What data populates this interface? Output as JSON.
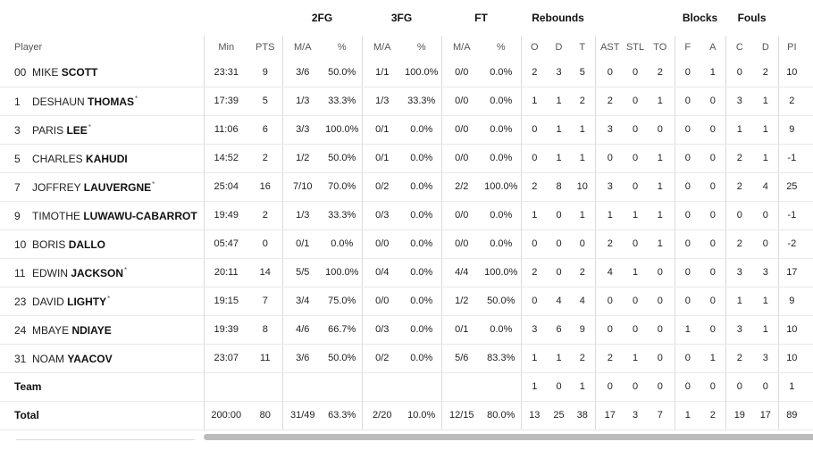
{
  "groups": {
    "twofg": "2FG",
    "threefg": "3FG",
    "ft": "FT",
    "rebounds": "Rebounds",
    "blocks": "Blocks",
    "fouls": "Fouls"
  },
  "columns": {
    "player": "Player",
    "min": "Min",
    "pts": "PTS",
    "ma": "M/A",
    "pct": "%",
    "o": "O",
    "d": "D",
    "t": "T",
    "ast": "AST",
    "stl": "STL",
    "to": "TO",
    "f": "F",
    "a": "A",
    "c": "C",
    "fd": "D",
    "pir": "PI"
  },
  "players": [
    {
      "num": "00",
      "first": "MIKE",
      "last": "SCOTT",
      "star": "",
      "min": "23:31",
      "pts": "9",
      "fg2": "3/6",
      "fg2p": "50.0%",
      "fg3": "1/1",
      "fg3p": "100.0%",
      "ft": "0/0",
      "ftp": "0.0%",
      "o": "2",
      "d": "3",
      "t": "5",
      "ast": "0",
      "stl": "0",
      "to": "2",
      "bf": "0",
      "ba": "1",
      "fc": "0",
      "fd": "2",
      "pir": "10"
    },
    {
      "num": "1",
      "first": "DESHAUN",
      "last": "THOMAS",
      "star": "*",
      "min": "17:39",
      "pts": "5",
      "fg2": "1/3",
      "fg2p": "33.3%",
      "fg3": "1/3",
      "fg3p": "33.3%",
      "ft": "0/0",
      "ftp": "0.0%",
      "o": "1",
      "d": "1",
      "t": "2",
      "ast": "2",
      "stl": "0",
      "to": "1",
      "bf": "0",
      "ba": "0",
      "fc": "3",
      "fd": "1",
      "pir": "2"
    },
    {
      "num": "3",
      "first": "PARIS",
      "last": "LEE",
      "star": "*",
      "min": "11:06",
      "pts": "6",
      "fg2": "3/3",
      "fg2p": "100.0%",
      "fg3": "0/1",
      "fg3p": "0.0%",
      "ft": "0/0",
      "ftp": "0.0%",
      "o": "0",
      "d": "1",
      "t": "1",
      "ast": "3",
      "stl": "0",
      "to": "0",
      "bf": "0",
      "ba": "0",
      "fc": "1",
      "fd": "1",
      "pir": "9"
    },
    {
      "num": "5",
      "first": "CHARLES",
      "last": "KAHUDI",
      "star": "",
      "min": "14:52",
      "pts": "2",
      "fg2": "1/2",
      "fg2p": "50.0%",
      "fg3": "0/1",
      "fg3p": "0.0%",
      "ft": "0/0",
      "ftp": "0.0%",
      "o": "0",
      "d": "1",
      "t": "1",
      "ast": "0",
      "stl": "0",
      "to": "1",
      "bf": "0",
      "ba": "0",
      "fc": "2",
      "fd": "1",
      "pir": "-1"
    },
    {
      "num": "7",
      "first": "JOFFREY",
      "last": "LAUVERGNE",
      "star": "*",
      "min": "25:04",
      "pts": "16",
      "fg2": "7/10",
      "fg2p": "70.0%",
      "fg3": "0/2",
      "fg3p": "0.0%",
      "ft": "2/2",
      "ftp": "100.0%",
      "o": "2",
      "d": "8",
      "t": "10",
      "ast": "3",
      "stl": "0",
      "to": "1",
      "bf": "0",
      "ba": "0",
      "fc": "2",
      "fd": "4",
      "pir": "25"
    },
    {
      "num": "9",
      "first": "TIMOTHE",
      "last": "LUWAWU-CABARROT",
      "star": "",
      "min": "19:49",
      "pts": "2",
      "fg2": "1/3",
      "fg2p": "33.3%",
      "fg3": "0/3",
      "fg3p": "0.0%",
      "ft": "0/0",
      "ftp": "0.0%",
      "o": "1",
      "d": "0",
      "t": "1",
      "ast": "1",
      "stl": "1",
      "to": "1",
      "bf": "0",
      "ba": "0",
      "fc": "0",
      "fd": "0",
      "pir": "-1"
    },
    {
      "num": "10",
      "first": "BORIS",
      "last": "DALLO",
      "star": "",
      "min": "05:47",
      "pts": "0",
      "fg2": "0/1",
      "fg2p": "0.0%",
      "fg3": "0/0",
      "fg3p": "0.0%",
      "ft": "0/0",
      "ftp": "0.0%",
      "o": "0",
      "d": "0",
      "t": "0",
      "ast": "2",
      "stl": "0",
      "to": "1",
      "bf": "0",
      "ba": "0",
      "fc": "2",
      "fd": "0",
      "pir": "-2"
    },
    {
      "num": "11",
      "first": "EDWIN",
      "last": "JACKSON",
      "star": "*",
      "min": "20:11",
      "pts": "14",
      "fg2": "5/5",
      "fg2p": "100.0%",
      "fg3": "0/4",
      "fg3p": "0.0%",
      "ft": "4/4",
      "ftp": "100.0%",
      "o": "2",
      "d": "0",
      "t": "2",
      "ast": "4",
      "stl": "1",
      "to": "0",
      "bf": "0",
      "ba": "0",
      "fc": "3",
      "fd": "3",
      "pir": "17"
    },
    {
      "num": "23",
      "first": "DAVID",
      "last": "LIGHTY",
      "star": "*",
      "min": "19:15",
      "pts": "7",
      "fg2": "3/4",
      "fg2p": "75.0%",
      "fg3": "0/0",
      "fg3p": "0.0%",
      "ft": "1/2",
      "ftp": "50.0%",
      "o": "0",
      "d": "4",
      "t": "4",
      "ast": "0",
      "stl": "0",
      "to": "0",
      "bf": "0",
      "ba": "0",
      "fc": "1",
      "fd": "1",
      "pir": "9"
    },
    {
      "num": "24",
      "first": "MBAYE",
      "last": "NDIAYE",
      "star": "",
      "min": "19:39",
      "pts": "8",
      "fg2": "4/6",
      "fg2p": "66.7%",
      "fg3": "0/3",
      "fg3p": "0.0%",
      "ft": "0/1",
      "ftp": "0.0%",
      "o": "3",
      "d": "6",
      "t": "9",
      "ast": "0",
      "stl": "0",
      "to": "0",
      "bf": "1",
      "ba": "0",
      "fc": "3",
      "fd": "1",
      "pir": "10"
    },
    {
      "num": "31",
      "first": "NOAM",
      "last": "YAACOV",
      "star": "",
      "min": "23:07",
      "pts": "11",
      "fg2": "3/6",
      "fg2p": "50.0%",
      "fg3": "0/2",
      "fg3p": "0.0%",
      "ft": "5/6",
      "ftp": "83.3%",
      "o": "1",
      "d": "1",
      "t": "2",
      "ast": "2",
      "stl": "1",
      "to": "0",
      "bf": "0",
      "ba": "1",
      "fc": "2",
      "fd": "3",
      "pir": "10"
    }
  ],
  "team": {
    "label": "Team",
    "o": "1",
    "d": "0",
    "t": "1",
    "ast": "0",
    "stl": "0",
    "to": "0",
    "bf": "0",
    "ba": "0",
    "fc": "0",
    "fd": "0",
    "pir": "1"
  },
  "total": {
    "label": "Total",
    "min": "200:00",
    "pts": "80",
    "fg2": "31/49",
    "fg2p": "63.3%",
    "fg3": "2/20",
    "fg3p": "10.0%",
    "ft": "12/15",
    "ftp": "80.0%",
    "o": "13",
    "d": "25",
    "t": "38",
    "ast": "17",
    "stl": "3",
    "to": "7",
    "bf": "1",
    "ba": "2",
    "fc": "19",
    "fd": "17",
    "pir": "89"
  }
}
